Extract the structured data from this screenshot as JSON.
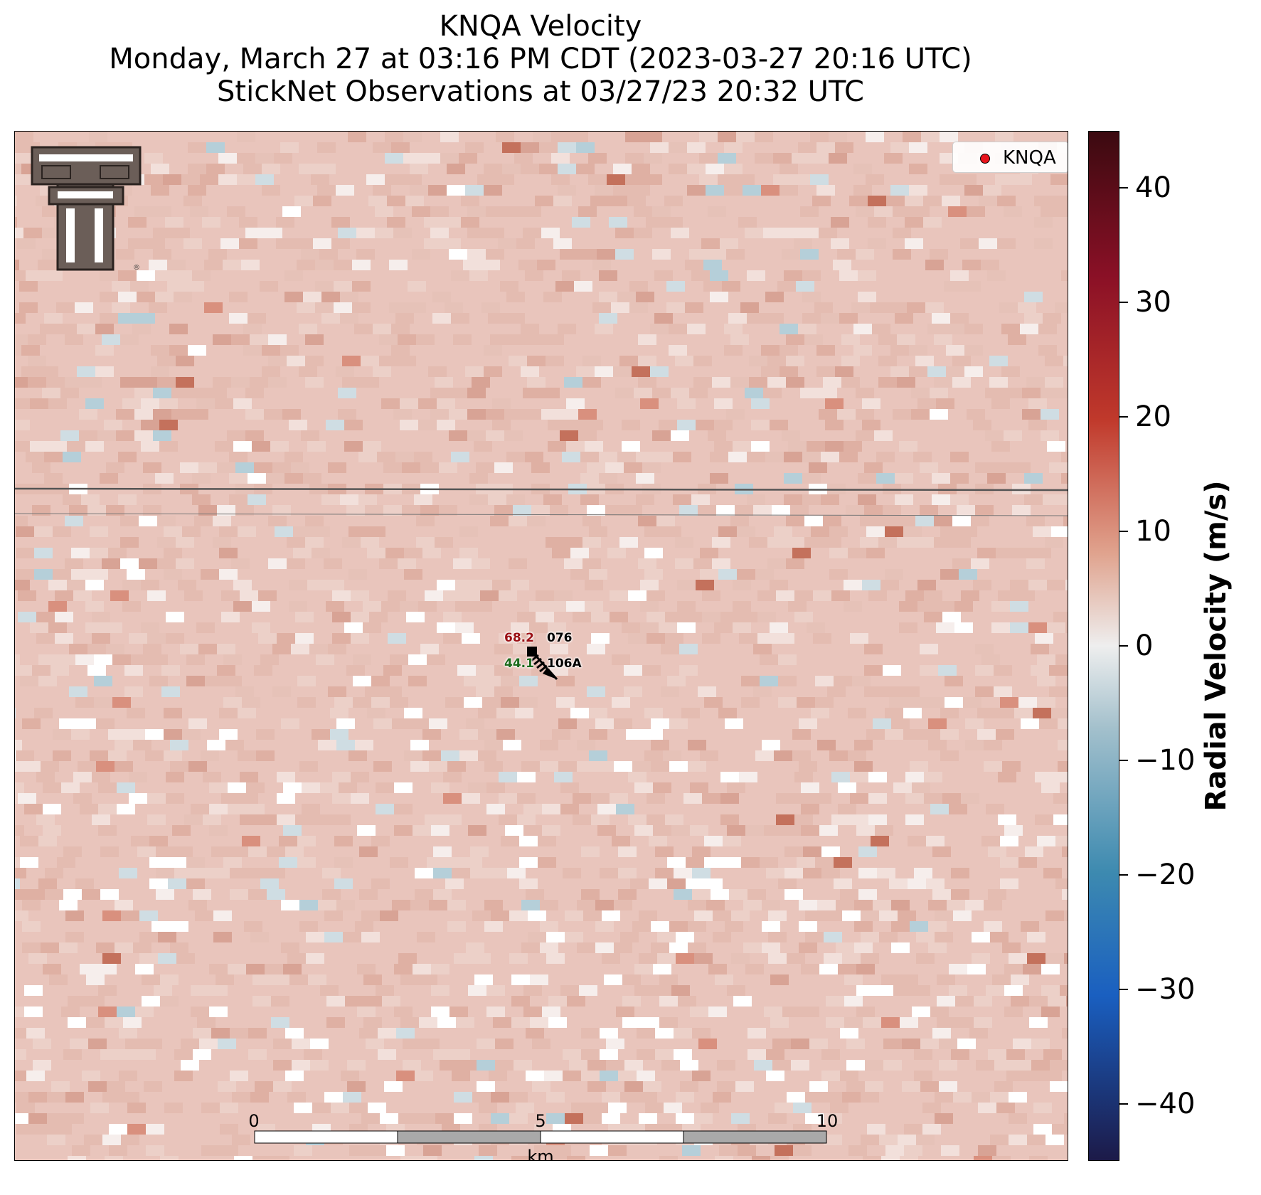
{
  "title": {
    "line1": "KNQA Velocity",
    "line2": "Monday, March 27 at 03:16 PM CDT (2023-03-27 20:16 UTC)",
    "line3": "StickNet Observations at 03/27/23 20:32 UTC"
  },
  "legend": {
    "marker_label": "KNQA",
    "marker_color": "#e8141c"
  },
  "logo": {
    "name": "Texas Tech Double T"
  },
  "stations": [
    {
      "temp": "68.2",
      "dewpoint": "44.1",
      "id": "076",
      "id2": "106A"
    }
  ],
  "scalebar": {
    "ticks": [
      "0",
      "5",
      "10"
    ],
    "unit": "km"
  },
  "colorbar": {
    "label": "Radial Velocity (m/s)",
    "ticks": [
      "40",
      "30",
      "20",
      "10",
      "0",
      "−10",
      "−20",
      "−30",
      "−40"
    ],
    "range": [
      -45,
      45
    ],
    "colors": {
      "max": "#3b0a10",
      "zero": "#eeeeee",
      "min": "#1c1a48"
    }
  }
}
